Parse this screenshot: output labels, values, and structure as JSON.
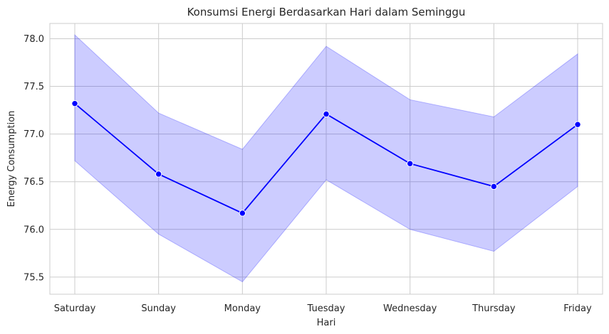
{
  "chart_data": {
    "type": "line",
    "title": "Konsumsi Energi Berdasarkan Hari dalam Seminggu",
    "xlabel": "Hari",
    "ylabel": "Energy Consumption",
    "categories": [
      "Saturday",
      "Sunday",
      "Monday",
      "Tuesday",
      "Wednesday",
      "Thursday",
      "Friday"
    ],
    "series": [
      {
        "values": [
          77.32,
          76.58,
          76.17,
          77.21,
          76.69,
          76.45,
          77.1
        ],
        "ci_lower": [
          76.72,
          75.95,
          75.45,
          76.52,
          76.0,
          75.77,
          76.45
        ],
        "ci_upper": [
          78.04,
          77.22,
          76.84,
          77.92,
          77.36,
          77.18,
          77.84
        ],
        "color": "#0000ff",
        "band_color": "#0000ff"
      }
    ],
    "ylim": [
      75.32,
      78.16
    ],
    "yticks": [
      75.5,
      76.0,
      76.5,
      77.0,
      77.5,
      78.0
    ],
    "ytick_labels": [
      "75.5",
      "76.0",
      "76.5",
      "77.0",
      "77.5",
      "78.0"
    ],
    "grid": true,
    "legend": "none"
  }
}
